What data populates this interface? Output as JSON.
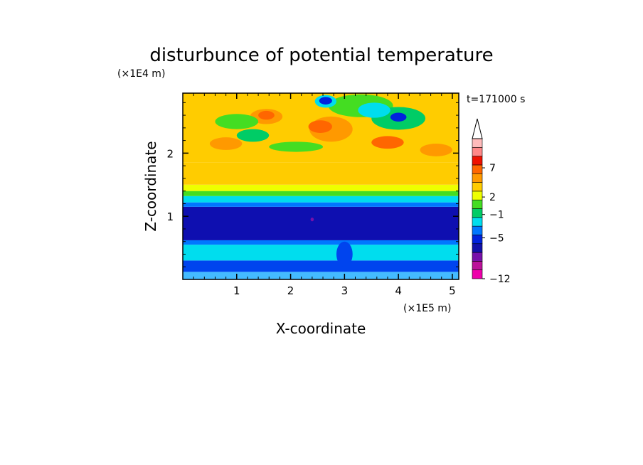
{
  "chart_data": {
    "type": "heatmap",
    "title": "disturbunce of potential temperature",
    "time_label": "t=171000 s",
    "xlabel": "X-coordinate",
    "ylabel": "Z-coordinate",
    "x_unit": "(×1E5 m)",
    "y_unit": "(×1E4 m)",
    "xlim": [
      0,
      5.12
    ],
    "ylim": [
      0,
      2.95
    ],
    "x_ticks": [
      1,
      2,
      3,
      4,
      5
    ],
    "y_ticks": [
      1,
      2
    ],
    "x_tick_labels": [
      "1",
      "2",
      "3",
      "4",
      "5"
    ],
    "y_tick_labels": [
      "1",
      "2"
    ],
    "colorbar": {
      "colors": [
        "#ee00aa",
        "#bb1199",
        "#7711aa",
        "#1111aa",
        "#0022dd",
        "#0077ff",
        "#00ddee",
        "#00cc66",
        "#44dd22",
        "#eeff00",
        "#ffcc00",
        "#ff9900",
        "#ff6600",
        "#ee1100",
        "#ff8888",
        "#ffbbbb"
      ],
      "labels": [
        {
          "value": -12,
          "text": "−12"
        },
        {
          "value": -5,
          "text": "−5"
        },
        {
          "value": -1,
          "text": "−1"
        },
        {
          "value": 2,
          "text": "2"
        },
        {
          "value": 7,
          "text": "7"
        }
      ]
    },
    "layers": [
      {
        "z": [
          0.0,
          0.12
        ],
        "color": "#44bbff"
      },
      {
        "z": [
          0.12,
          0.3
        ],
        "color": "#0044ee"
      },
      {
        "z": [
          0.3,
          0.55
        ],
        "color": "#00ddee"
      },
      {
        "z": [
          0.55,
          0.62
        ],
        "color": "#0077ff"
      },
      {
        "z": [
          0.62,
          1.15
        ],
        "color": "#0e0fb0"
      },
      {
        "z": [
          1.15,
          1.22
        ],
        "color": "#0077ff"
      },
      {
        "z": [
          1.22,
          1.32
        ],
        "color": "#00ddee"
      },
      {
        "z": [
          1.32,
          1.4
        ],
        "color": "#44dd22"
      },
      {
        "z": [
          1.4,
          1.5
        ],
        "color": "#eeff00"
      },
      {
        "z": [
          1.5,
          1.85
        ],
        "color": "#ffcc00"
      },
      {
        "z": [
          1.85,
          2.95
        ],
        "color": "#ffcc00"
      }
    ],
    "features": [
      {
        "kind": "ellipse",
        "x": 2.75,
        "z": 2.38,
        "rx": 0.4,
        "rz": 0.2,
        "color": "#ff9900"
      },
      {
        "kind": "ellipse",
        "x": 2.55,
        "z": 2.42,
        "rx": 0.22,
        "rz": 0.1,
        "color": "#ff6600"
      },
      {
        "kind": "ellipse",
        "x": 1.55,
        "z": 2.58,
        "rx": 0.3,
        "rz": 0.12,
        "color": "#ff9900"
      },
      {
        "kind": "ellipse",
        "x": 1.55,
        "z": 2.6,
        "rx": 0.15,
        "rz": 0.07,
        "color": "#ff6600"
      },
      {
        "kind": "ellipse",
        "x": 3.8,
        "z": 2.17,
        "rx": 0.3,
        "rz": 0.1,
        "color": "#ff6600"
      },
      {
        "kind": "ellipse",
        "x": 4.7,
        "z": 2.05,
        "rx": 0.3,
        "rz": 0.1,
        "color": "#ff9900"
      },
      {
        "kind": "ellipse",
        "x": 0.8,
        "z": 2.15,
        "rx": 0.3,
        "rz": 0.1,
        "color": "#ff9900"
      },
      {
        "kind": "ellipse",
        "x": 1.0,
        "z": 2.5,
        "rx": 0.4,
        "rz": 0.12,
        "color": "#44dd22"
      },
      {
        "kind": "ellipse",
        "x": 1.3,
        "z": 2.28,
        "rx": 0.3,
        "rz": 0.1,
        "color": "#00cc66"
      },
      {
        "kind": "ellipse",
        "x": 2.1,
        "z": 2.1,
        "rx": 0.5,
        "rz": 0.08,
        "color": "#44dd22"
      },
      {
        "kind": "ellipse",
        "x": 3.3,
        "z": 2.75,
        "rx": 0.6,
        "rz": 0.18,
        "color": "#44dd22"
      },
      {
        "kind": "ellipse",
        "x": 4.0,
        "z": 2.55,
        "rx": 0.5,
        "rz": 0.18,
        "color": "#00cc66"
      },
      {
        "kind": "ellipse",
        "x": 3.55,
        "z": 2.68,
        "rx": 0.3,
        "rz": 0.12,
        "color": "#00ddee"
      },
      {
        "kind": "ellipse",
        "x": 4.0,
        "z": 2.57,
        "rx": 0.15,
        "rz": 0.07,
        "color": "#0022dd"
      },
      {
        "kind": "ellipse",
        "x": 2.65,
        "z": 2.82,
        "rx": 0.2,
        "rz": 0.1,
        "color": "#00ddee"
      },
      {
        "kind": "ellipse",
        "x": 2.65,
        "z": 2.83,
        "rx": 0.12,
        "rz": 0.06,
        "color": "#0022dd"
      },
      {
        "kind": "ellipse",
        "x": 2.4,
        "z": 0.95,
        "rx": 0.03,
        "rz": 0.03,
        "color": "#7711aa"
      },
      {
        "kind": "ellipse",
        "x": 3.0,
        "z": 0.4,
        "rx": 0.15,
        "rz": 0.2,
        "color": "#0044ee"
      }
    ]
  }
}
